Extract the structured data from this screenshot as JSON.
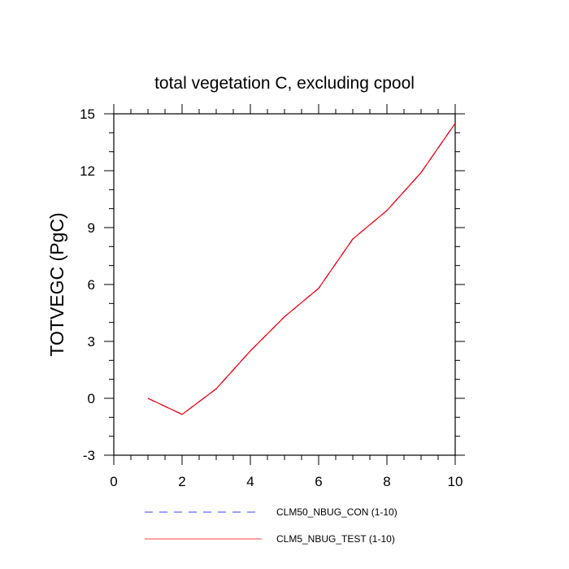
{
  "chart_data": {
    "type": "line",
    "title": "total vegetation C, excluding cpool",
    "xlabel": "",
    "ylabel": "TOTVEGC  (PgC)",
    "xlim": [
      0,
      10
    ],
    "ylim": [
      -3,
      15
    ],
    "xticks": [
      0,
      2,
      4,
      6,
      8,
      10
    ],
    "yticks": [
      -3,
      0,
      3,
      6,
      9,
      12,
      15
    ],
    "grid": false,
    "legend_position": "bottom",
    "x": [
      1,
      2,
      3,
      4,
      5,
      6,
      7,
      8,
      9,
      10
    ],
    "series": [
      {
        "name": "CLM50_NBUG_CON (1-10)",
        "values": [
          0.0,
          -0.85,
          0.5,
          2.5,
          4.3,
          5.8,
          8.4,
          9.9,
          11.9,
          14.5
        ],
        "color": "#0000ff",
        "style": "dashed"
      },
      {
        "name": "CLM5_NBUG_TEST (1-10)",
        "values": [
          0.0,
          -0.85,
          0.5,
          2.5,
          4.3,
          5.8,
          8.4,
          9.9,
          11.9,
          14.5
        ],
        "color": "#ff0000",
        "style": "solid"
      }
    ]
  }
}
